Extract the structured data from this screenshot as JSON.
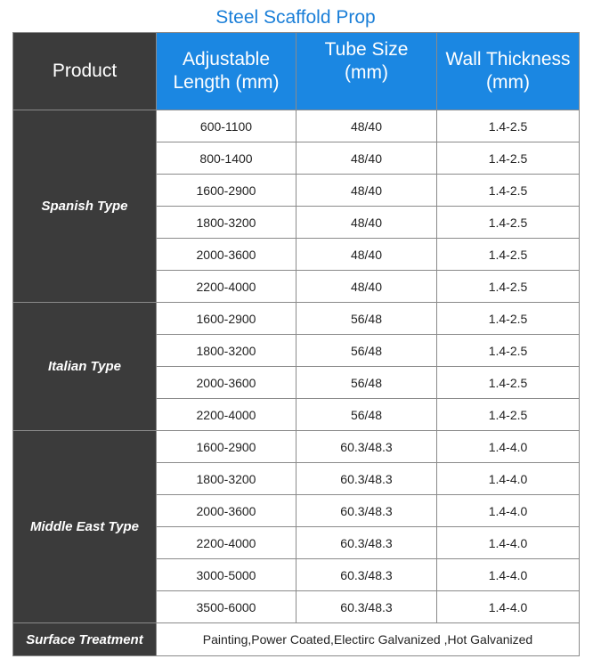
{
  "title": "Steel Scaffold Prop",
  "header": {
    "product": "Product",
    "length_line1": "Adjustable",
    "length_line2": "Length (mm)",
    "tube_line1": "Tube Size",
    "tube_line2": "(mm)",
    "wall_line1": "Wall Thickness",
    "wall_line2": "(mm)"
  },
  "groups": [
    {
      "name": "Spanish Type",
      "rows": [
        [
          "600-1100",
          "48/40",
          "1.4-2.5"
        ],
        [
          "800-1400",
          "48/40",
          "1.4-2.5"
        ],
        [
          "1600-2900",
          "48/40",
          "1.4-2.5"
        ],
        [
          "1800-3200",
          "48/40",
          "1.4-2.5"
        ],
        [
          "2000-3600",
          "48/40",
          "1.4-2.5"
        ],
        [
          "2200-4000",
          "48/40",
          "1.4-2.5"
        ]
      ]
    },
    {
      "name": "Italian Type",
      "rows": [
        [
          "1600-2900",
          "56/48",
          "1.4-2.5"
        ],
        [
          "1800-3200",
          "56/48",
          "1.4-2.5"
        ],
        [
          "2000-3600",
          "56/48",
          "1.4-2.5"
        ],
        [
          "2200-4000",
          "56/48",
          "1.4-2.5"
        ]
      ]
    },
    {
      "name": "Middle East Type",
      "rows": [
        [
          "1600-2900",
          "60.3/48.3",
          "1.4-4.0"
        ],
        [
          "1800-3200",
          "60.3/48.3",
          "1.4-4.0"
        ],
        [
          "2000-3600",
          "60.3/48.3",
          "1.4-4.0"
        ],
        [
          "2200-4000",
          "60.3/48.3",
          "1.4-4.0"
        ],
        [
          "3000-5000",
          "60.3/48.3",
          "1.4-4.0"
        ],
        [
          "3500-6000",
          "60.3/48.3",
          "1.4-4.0"
        ]
      ]
    }
  ],
  "surface": {
    "label": "Surface Treatment",
    "value": "Painting,Power Coated,Electirc Galvanized ,Hot Galvanized"
  },
  "colors": {
    "title": "#1b7fd8",
    "header_blue": "#1b87e2",
    "group_dark": "#3b3b3b"
  }
}
